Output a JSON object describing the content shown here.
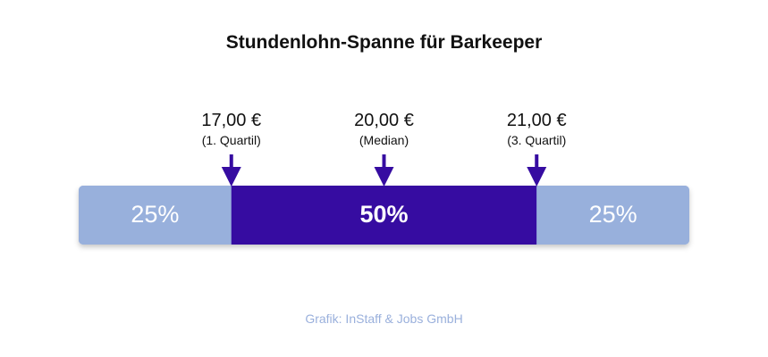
{
  "title": "Stundenlohn-Spanne für Barkeeper",
  "credit": "Grafik: InStaff & Jobs GmbH",
  "colors": {
    "outer": "#98b0dc",
    "inner": "#360ca1",
    "arrow": "#360ca1",
    "segment_text": "#ffffff",
    "title": "#111111",
    "credit": "#9ab0dc"
  },
  "chart_data": {
    "type": "bar",
    "orientation": "horizontal-stacked",
    "title": "Stundenlohn-Spanne für Barkeeper",
    "segments": [
      {
        "label": "25%",
        "share": 25
      },
      {
        "label": "50%",
        "share": 50
      },
      {
        "label": "25%",
        "share": 25
      }
    ],
    "markers": [
      {
        "value_label": "17,00 €",
        "note": "(1. Quartil)",
        "value": 17.0,
        "cumulative_share": 25
      },
      {
        "value_label": "20,00 €",
        "note": "(Median)",
        "value": 20.0,
        "cumulative_share": 50
      },
      {
        "value_label": "21,00 €",
        "note": "(3. Quartil)",
        "value": 21.0,
        "cumulative_share": 75
      }
    ]
  }
}
